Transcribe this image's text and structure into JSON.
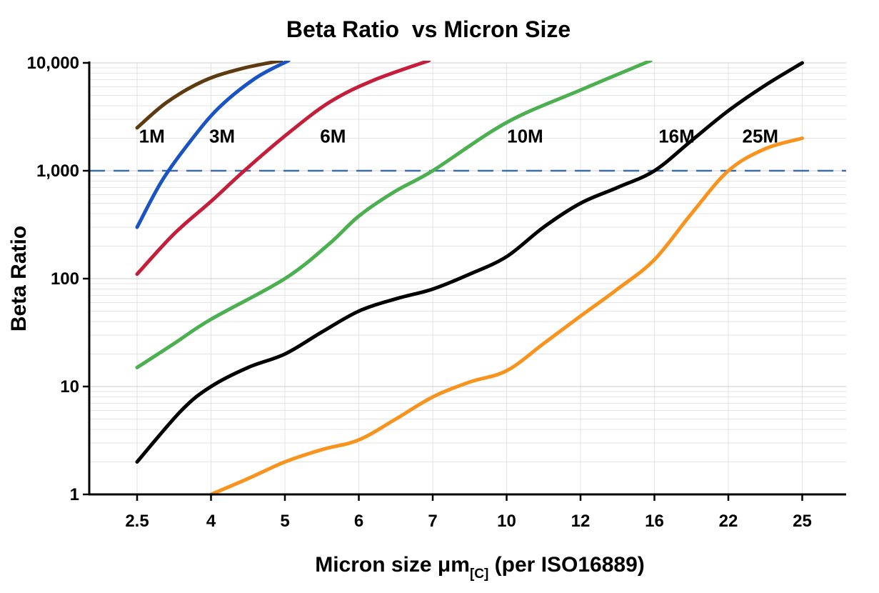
{
  "title": "Beta Ratio  vs Micron Size",
  "x_axis": {
    "label_prefix": "Micron size μm",
    "label_subscript": "[C]",
    "label_suffix": " (per ISO16889)",
    "tick_labels": [
      "2.5",
      "4",
      "5",
      "6",
      "7",
      "10",
      "12",
      "16",
      "22",
      "25"
    ]
  },
  "y_axis": {
    "label": "Beta Ratio",
    "tick_labels": [
      "1",
      "10",
      "100",
      "1,000",
      "10,000"
    ],
    "tick_values": [
      1,
      10,
      100,
      1000,
      10000
    ]
  },
  "chart_data": {
    "type": "line",
    "title": "Beta Ratio  vs Micron Size",
    "xlabel": "Micron size μm[C] (per ISO16889)",
    "ylabel": "Beta Ratio",
    "x_scale": "categorical-equal-spacing",
    "y_scale": "log10",
    "ylim": [
      1,
      10000
    ],
    "x_categories": [
      2.5,
      4,
      5,
      6,
      7,
      10,
      12,
      16,
      22,
      25
    ],
    "grid": "on",
    "grid_colors": {
      "minor": "#e3e3e3",
      "major": "#cccccc"
    },
    "reference_line": {
      "value": 1000,
      "style": "long-dash",
      "color": "#3c6ea5"
    },
    "series": [
      {
        "name": "1M",
        "color": "#5e3a10",
        "label_at": [
          2.8,
          2100
        ],
        "points": [
          [
            2.5,
            2500
          ],
          [
            3.1,
            4300
          ],
          [
            3.85,
            6800
          ],
          [
            4.4,
            8800
          ],
          [
            4.95,
            10500
          ]
        ]
      },
      {
        "name": "3M",
        "color": "#1953c4",
        "label_at": [
          4.15,
          2100
        ],
        "points": [
          [
            2.5,
            300
          ],
          [
            3.0,
            800
          ],
          [
            3.55,
            1800
          ],
          [
            4.1,
            3800
          ],
          [
            4.6,
            7200
          ],
          [
            5.05,
            10500
          ]
        ]
      },
      {
        "name": "6M",
        "color": "#c41e3a",
        "label_at": [
          5.65,
          2100
        ],
        "points": [
          [
            2.5,
            110
          ],
          [
            3.25,
            260
          ],
          [
            4,
            520
          ],
          [
            4.45,
            1000
          ],
          [
            5,
            2100
          ],
          [
            5.6,
            4300
          ],
          [
            6.2,
            6900
          ],
          [
            6.95,
            10500
          ]
        ]
      },
      {
        "name": "10M",
        "color": "#4caf50",
        "label_at": [
          10.5,
          2100
        ],
        "points": [
          [
            2.5,
            15
          ],
          [
            3.25,
            25
          ],
          [
            4,
            42
          ],
          [
            5,
            100
          ],
          [
            5.6,
            210
          ],
          [
            6,
            380
          ],
          [
            6.5,
            650
          ],
          [
            7,
            1000
          ],
          [
            10,
            2800
          ],
          [
            12,
            5600
          ],
          [
            15.8,
            10500
          ]
        ]
      },
      {
        "name": "16M",
        "color": "#000000",
        "label_at": [
          17.8,
          2100
        ],
        "points": [
          [
            2.5,
            2
          ],
          [
            3.4,
            6
          ],
          [
            4,
            10
          ],
          [
            4.5,
            15
          ],
          [
            5,
            20
          ],
          [
            5.5,
            32
          ],
          [
            6,
            50
          ],
          [
            6.5,
            65
          ],
          [
            7,
            80
          ],
          [
            8.5,
            110
          ],
          [
            10,
            160
          ],
          [
            11,
            300
          ],
          [
            12,
            500
          ],
          [
            14,
            700
          ],
          [
            16,
            1000
          ],
          [
            19,
            1900
          ],
          [
            22,
            3600
          ],
          [
            23.5,
            6200
          ],
          [
            25,
            10000
          ]
        ]
      },
      {
        "name": "25M",
        "color": "#f8941d",
        "label_at": [
          23.3,
          2100
        ],
        "points": [
          [
            4,
            1
          ],
          [
            4.5,
            1.4
          ],
          [
            5,
            2
          ],
          [
            5.5,
            2.6
          ],
          [
            6,
            3.2
          ],
          [
            6.5,
            5
          ],
          [
            7,
            8
          ],
          [
            8.5,
            11
          ],
          [
            10,
            14
          ],
          [
            11,
            25
          ],
          [
            12,
            45
          ],
          [
            14,
            80
          ],
          [
            16,
            150
          ],
          [
            19,
            400
          ],
          [
            22,
            1000
          ],
          [
            23.5,
            1600
          ],
          [
            25,
            2000
          ]
        ]
      }
    ]
  }
}
